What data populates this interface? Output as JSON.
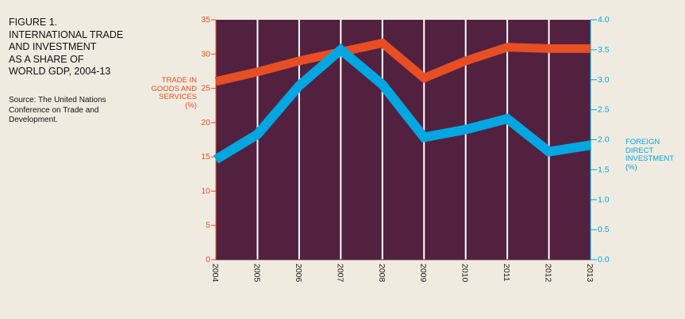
{
  "title": "FIGURE 1. INTERNATIONAL TRADE AND INVESTMENT AS A SHARE OF WORLD GDP, 2004-13",
  "title_lines": [
    "FIGURE 1.",
    "INTERNATIONAL TRADE",
    "AND INVESTMENT",
    "AS A SHARE OF",
    "WORLD GDP, 2004-13"
  ],
  "source": "Source: The United Nations Conference on Trade and Development.",
  "colors": {
    "background": "#f0ebe0",
    "plot": "#52213f",
    "trade": "#e84e24",
    "fdi": "#00a7e1",
    "grid": "#ffffff"
  },
  "chart_data": {
    "type": "line",
    "x": [
      "2004",
      "2005",
      "2006",
      "2007",
      "2008",
      "2009",
      "2010",
      "2011",
      "2012",
      "2013"
    ],
    "series": [
      {
        "name": "TRADE IN GOODS AND SERVICES (%)",
        "axis": "left",
        "values": [
          26.0,
          27.4,
          29.0,
          30.3,
          31.6,
          26.5,
          29.0,
          31.0,
          30.8,
          30.8
        ]
      },
      {
        "name": "FOREIGN DIRECT INVESTMENT (%)",
        "axis": "right",
        "values": [
          1.67,
          2.09,
          2.9,
          3.5,
          2.92,
          2.04,
          2.17,
          2.35,
          1.8,
          1.91
        ]
      }
    ],
    "ylabel_left": "TRADE IN GOODS AND SERVICES (%)",
    "ylabel_left_lines": [
      "TRADE IN",
      "GOODS AND",
      "SERVICES",
      "(%)"
    ],
    "ylabel_right": "FOREIGN DIRECT INVESTMENT (%)",
    "ylabel_right_lines": [
      "FOREIGN",
      "DIRECT",
      "INVESTMENT",
      "(%)"
    ],
    "ylim_left": [
      0,
      35
    ],
    "ylim_right": [
      0,
      4
    ],
    "yticks_left": [
      "0",
      "5",
      "10",
      "15",
      "20",
      "25",
      "30",
      "35"
    ],
    "yticks_right": [
      "0.0",
      "0.5",
      "1.0",
      "1.5",
      "2.0",
      "2.5",
      "3.0",
      "3.5",
      "4.0"
    ],
    "grid": "vertical"
  }
}
